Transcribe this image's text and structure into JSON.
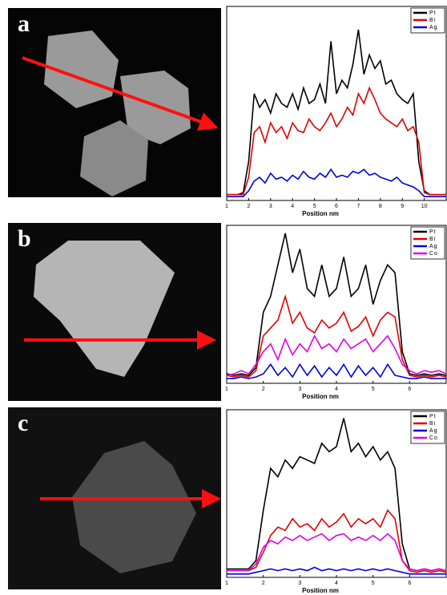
{
  "chart_data": [
    {
      "type": "line",
      "panel_label": "a",
      "x_label": "Position nm",
      "x": [
        1,
        1.25,
        1.5,
        1.75,
        2,
        2.25,
        2.5,
        2.75,
        3,
        3.25,
        3.5,
        3.75,
        4,
        4.25,
        4.5,
        4.75,
        5,
        5.25,
        5.5,
        5.75,
        6,
        6.25,
        6.5,
        6.75,
        7,
        7.25,
        7.5,
        7.75,
        8,
        8.25,
        8.5,
        8.75,
        9,
        9.25,
        9.5,
        9.75,
        10,
        10.25,
        10.5,
        10.75,
        11
      ],
      "xlim": [
        1,
        11
      ],
      "xticks": [
        1,
        2,
        3,
        4,
        5,
        6,
        7,
        8,
        9,
        10
      ],
      "ylim": [
        0,
        100
      ],
      "series": [
        {
          "name": "Pt",
          "color": "#000000",
          "values": [
            3,
            3,
            3,
            4,
            20,
            55,
            48,
            52,
            45,
            55,
            50,
            48,
            55,
            47,
            58,
            50,
            52,
            60,
            50,
            82,
            55,
            62,
            58,
            70,
            88,
            65,
            75,
            68,
            72,
            60,
            62,
            55,
            52,
            50,
            55,
            20,
            5,
            3,
            3,
            3,
            3
          ]
        },
        {
          "name": "Bi",
          "color": "#e00000",
          "values": [
            3,
            3,
            3,
            3,
            12,
            35,
            38,
            30,
            40,
            35,
            38,
            32,
            40,
            36,
            35,
            42,
            38,
            36,
            40,
            45,
            38,
            42,
            48,
            44,
            55,
            50,
            58,
            52,
            45,
            42,
            40,
            38,
            42,
            36,
            38,
            30,
            4,
            3,
            3,
            3,
            3
          ]
        },
        {
          "name": "Ag",
          "color": "#0000e0",
          "values": [
            2,
            2,
            2,
            2,
            5,
            10,
            12,
            9,
            14,
            11,
            12,
            10,
            13,
            11,
            15,
            12,
            11,
            14,
            12,
            16,
            12,
            13,
            12,
            15,
            14,
            16,
            13,
            14,
            12,
            11,
            10,
            12,
            9,
            8,
            7,
            5,
            2,
            2,
            2,
            2,
            2
          ]
        }
      ]
    },
    {
      "type": "line",
      "panel_label": "b",
      "x_label": "Position nm",
      "x": [
        1,
        1.2,
        1.4,
        1.6,
        1.8,
        2,
        2.2,
        2.4,
        2.6,
        2.8,
        3,
        3.2,
        3.4,
        3.6,
        3.8,
        4,
        4.2,
        4.4,
        4.6,
        4.8,
        5,
        5.2,
        5.4,
        5.6,
        5.8,
        6,
        6.2,
        6.4,
        6.6,
        6.8,
        7
      ],
      "xlim": [
        1,
        7
      ],
      "xticks": [
        1,
        2,
        3,
        4,
        5,
        6
      ],
      "ylim": [
        0,
        100
      ],
      "series": [
        {
          "name": "Pt",
          "color": "#000000",
          "values": [
            6,
            5,
            6,
            5,
            10,
            45,
            55,
            75,
            95,
            70,
            85,
            60,
            55,
            75,
            55,
            60,
            80,
            55,
            60,
            75,
            50,
            65,
            75,
            70,
            20,
            6,
            5,
            6,
            5,
            6,
            5
          ]
        },
        {
          "name": "Bi",
          "color": "#e00000",
          "values": [
            5,
            4,
            5,
            4,
            8,
            30,
            35,
            40,
            55,
            38,
            45,
            35,
            32,
            40,
            35,
            38,
            45,
            33,
            36,
            42,
            30,
            40,
            45,
            42,
            15,
            5,
            4,
            5,
            4,
            5,
            4
          ]
        },
        {
          "name": "Ag",
          "color": "#0000e0",
          "values": [
            3,
            3,
            4,
            3,
            4,
            6,
            12,
            5,
            10,
            4,
            12,
            5,
            11,
            4,
            10,
            5,
            12,
            4,
            11,
            5,
            10,
            4,
            12,
            5,
            4,
            3,
            3,
            4,
            3,
            3,
            3
          ]
        },
        {
          "name": "Co",
          "color": "#e000e0",
          "values": [
            5,
            6,
            8,
            6,
            12,
            20,
            25,
            15,
            28,
            18,
            25,
            20,
            30,
            22,
            25,
            20,
            28,
            22,
            25,
            28,
            20,
            25,
            30,
            22,
            12,
            8,
            6,
            8,
            7,
            8,
            6
          ]
        }
      ]
    },
    {
      "type": "line",
      "panel_label": "c",
      "x_label": "Position nm",
      "x": [
        1,
        1.2,
        1.4,
        1.6,
        1.8,
        2,
        2.2,
        2.4,
        2.6,
        2.8,
        3,
        3.2,
        3.4,
        3.6,
        3.8,
        4,
        4.2,
        4.4,
        4.6,
        4.8,
        5,
        5.2,
        5.4,
        5.6,
        5.8,
        6,
        6.2,
        6.4,
        6.6,
        6.8,
        7
      ],
      "xlim": [
        1,
        7
      ],
      "xticks": [
        1,
        2,
        3,
        4,
        5,
        6
      ],
      "ylim": [
        0,
        100
      ],
      "series": [
        {
          "name": "Pt",
          "color": "#000000",
          "values": [
            5,
            5,
            5,
            5,
            10,
            40,
            65,
            60,
            70,
            65,
            72,
            70,
            68,
            80,
            75,
            78,
            95,
            75,
            80,
            72,
            78,
            70,
            75,
            65,
            20,
            5,
            4,
            5,
            4,
            5,
            4
          ]
        },
        {
          "name": "Bi",
          "color": "#e00000",
          "values": [
            4,
            4,
            4,
            4,
            6,
            15,
            25,
            30,
            28,
            35,
            30,
            32,
            28,
            35,
            30,
            33,
            38,
            30,
            35,
            32,
            35,
            30,
            40,
            35,
            10,
            4,
            3,
            4,
            3,
            4,
            3
          ]
        },
        {
          "name": "Ag",
          "color": "#0000e0",
          "values": [
            2,
            2,
            2,
            2,
            3,
            4,
            5,
            4,
            5,
            4,
            5,
            4,
            6,
            4,
            5,
            4,
            5,
            4,
            5,
            4,
            5,
            4,
            5,
            4,
            3,
            2,
            2,
            2,
            2,
            2,
            2
          ]
        },
        {
          "name": "Co",
          "color": "#e000e0",
          "values": [
            4,
            4,
            4,
            4,
            8,
            18,
            22,
            20,
            24,
            22,
            25,
            22,
            24,
            26,
            22,
            25,
            26,
            22,
            24,
            22,
            25,
            22,
            26,
            22,
            10,
            5,
            4,
            5,
            4,
            5,
            4
          ]
        }
      ]
    }
  ]
}
